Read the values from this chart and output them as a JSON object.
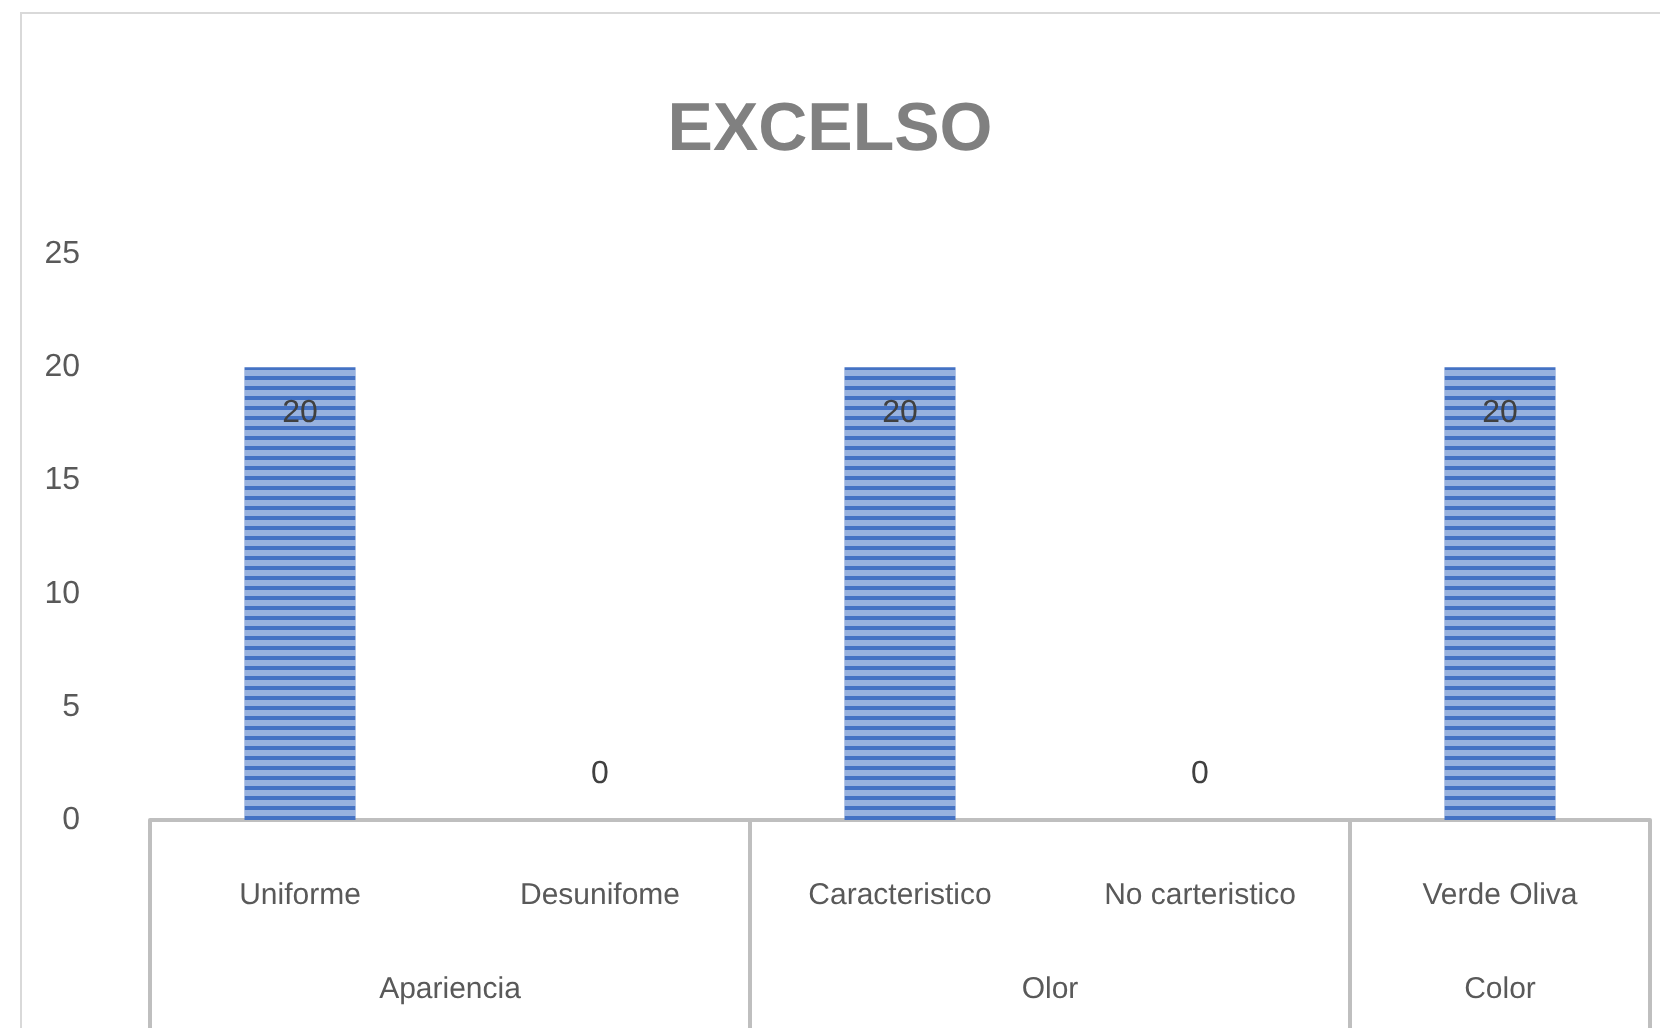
{
  "chart_data": {
    "type": "bar",
    "title": "EXCELSO",
    "categories": [
      "Uniforme",
      "Desunifome",
      "Caracteristico",
      "No carteristico",
      "Verde Oliva"
    ],
    "values": [
      20,
      0,
      20,
      0,
      20
    ],
    "color": "#4472c4",
    "ylim": [
      0,
      25
    ],
    "yticks": [
      0,
      5,
      10,
      15,
      20,
      25
    ],
    "data_labels": true,
    "annotations": [
      "Apariencia",
      "Olor",
      "Color"
    ]
  }
}
